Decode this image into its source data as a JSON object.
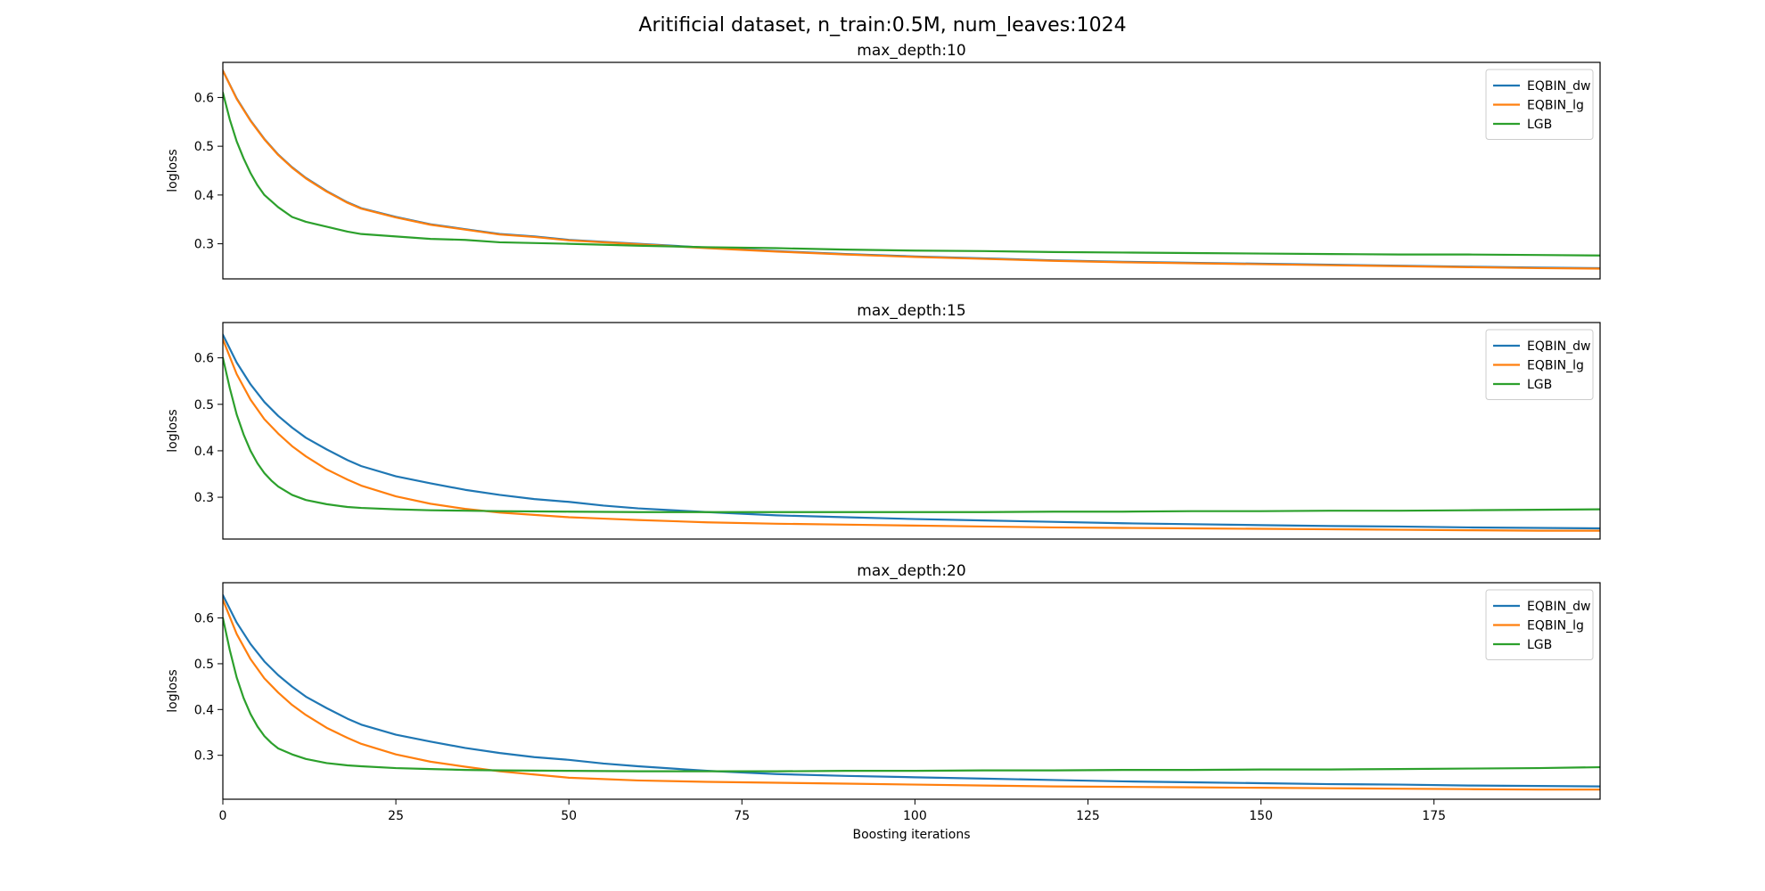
{
  "figure": {
    "title": "Aritificial dataset, n_train:0.5M, num_leaves:1024"
  },
  "chart_data": [
    {
      "type": "line",
      "title": "max_depth:10",
      "xlabel": "",
      "ylabel": "logloss",
      "xlim": [
        0,
        199
      ],
      "ylim": [
        0.228,
        0.672
      ],
      "yticks": [
        0.3,
        0.4,
        0.5,
        0.6
      ],
      "xticks": [],
      "legend_position": "top-right",
      "grid": false,
      "series": [
        {
          "name": "EQBIN_dw",
          "color": "#1f77b4",
          "x": [
            0,
            2,
            4,
            6,
            8,
            10,
            12,
            15,
            18,
            20,
            25,
            30,
            35,
            40,
            45,
            50,
            60,
            70,
            80,
            90,
            100,
            110,
            120,
            130,
            140,
            150,
            160,
            170,
            180,
            190,
            199
          ],
          "y": [
            0.655,
            0.598,
            0.553,
            0.515,
            0.483,
            0.457,
            0.435,
            0.408,
            0.385,
            0.373,
            0.355,
            0.34,
            0.33,
            0.32,
            0.315,
            0.308,
            0.3,
            0.292,
            0.285,
            0.279,
            0.274,
            0.27,
            0.266,
            0.263,
            0.261,
            0.259,
            0.257,
            0.255,
            0.253,
            0.251,
            0.25
          ]
        },
        {
          "name": "EQBIN_lg",
          "color": "#ff7f0e",
          "x": [
            0,
            2,
            4,
            6,
            8,
            10,
            12,
            15,
            18,
            20,
            25,
            30,
            35,
            40,
            45,
            50,
            60,
            70,
            80,
            90,
            100,
            110,
            120,
            130,
            140,
            150,
            160,
            170,
            180,
            190,
            199
          ],
          "y": [
            0.655,
            0.597,
            0.552,
            0.514,
            0.482,
            0.456,
            0.434,
            0.407,
            0.384,
            0.372,
            0.354,
            0.339,
            0.329,
            0.319,
            0.314,
            0.307,
            0.299,
            0.291,
            0.284,
            0.278,
            0.273,
            0.269,
            0.265,
            0.262,
            0.26,
            0.258,
            0.256,
            0.254,
            0.252,
            0.25,
            0.249
          ]
        },
        {
          "name": "LGB",
          "color": "#2ca02c",
          "x": [
            0,
            1,
            2,
            3,
            4,
            5,
            6,
            8,
            10,
            12,
            15,
            18,
            20,
            25,
            30,
            35,
            40,
            50,
            60,
            70,
            80,
            90,
            100,
            110,
            120,
            130,
            140,
            150,
            160,
            170,
            180,
            190,
            199
          ],
          "y": [
            0.61,
            0.555,
            0.51,
            0.475,
            0.445,
            0.42,
            0.4,
            0.375,
            0.355,
            0.345,
            0.335,
            0.325,
            0.32,
            0.315,
            0.31,
            0.308,
            0.303,
            0.3,
            0.296,
            0.293,
            0.291,
            0.288,
            0.286,
            0.285,
            0.283,
            0.282,
            0.281,
            0.28,
            0.279,
            0.278,
            0.278,
            0.277,
            0.276
          ]
        }
      ]
    },
    {
      "type": "line",
      "title": "max_depth:15",
      "xlabel": "",
      "ylabel": "logloss",
      "xlim": [
        0,
        199
      ],
      "ylim": [
        0.21,
        0.676
      ],
      "yticks": [
        0.3,
        0.4,
        0.5,
        0.6
      ],
      "xticks": [],
      "legend_position": "top-right",
      "grid": false,
      "series": [
        {
          "name": "EQBIN_dw",
          "color": "#1f77b4",
          "x": [
            0,
            2,
            4,
            6,
            8,
            10,
            12,
            15,
            18,
            20,
            25,
            30,
            35,
            40,
            45,
            50,
            55,
            60,
            70,
            80,
            90,
            100,
            110,
            120,
            130,
            140,
            150,
            160,
            170,
            180,
            190,
            199
          ],
          "y": [
            0.65,
            0.59,
            0.543,
            0.505,
            0.475,
            0.45,
            0.428,
            0.403,
            0.38,
            0.367,
            0.345,
            0.33,
            0.316,
            0.305,
            0.296,
            0.29,
            0.282,
            0.276,
            0.268,
            0.261,
            0.257,
            0.253,
            0.25,
            0.247,
            0.244,
            0.242,
            0.24,
            0.238,
            0.237,
            0.235,
            0.234,
            0.233
          ]
        },
        {
          "name": "EQBIN_lg",
          "color": "#ff7f0e",
          "x": [
            0,
            2,
            4,
            6,
            8,
            10,
            12,
            15,
            18,
            20,
            25,
            30,
            35,
            40,
            45,
            50,
            55,
            60,
            70,
            80,
            90,
            100,
            110,
            120,
            130,
            140,
            150,
            160,
            170,
            180,
            190,
            199
          ],
          "y": [
            0.64,
            0.565,
            0.51,
            0.468,
            0.437,
            0.41,
            0.388,
            0.36,
            0.338,
            0.325,
            0.302,
            0.286,
            0.275,
            0.267,
            0.262,
            0.257,
            0.254,
            0.251,
            0.246,
            0.243,
            0.241,
            0.239,
            0.237,
            0.235,
            0.234,
            0.233,
            0.232,
            0.231,
            0.23,
            0.229,
            0.228,
            0.228
          ]
        },
        {
          "name": "LGB",
          "color": "#2ca02c",
          "x": [
            0,
            1,
            2,
            3,
            4,
            5,
            6,
            7,
            8,
            10,
            12,
            15,
            18,
            20,
            25,
            30,
            35,
            40,
            50,
            60,
            70,
            80,
            90,
            100,
            110,
            120,
            130,
            140,
            150,
            160,
            170,
            180,
            190,
            199
          ],
          "y": [
            0.6,
            0.535,
            0.478,
            0.435,
            0.4,
            0.373,
            0.352,
            0.336,
            0.323,
            0.305,
            0.294,
            0.285,
            0.279,
            0.277,
            0.274,
            0.272,
            0.271,
            0.27,
            0.269,
            0.268,
            0.268,
            0.268,
            0.268,
            0.268,
            0.268,
            0.269,
            0.269,
            0.27,
            0.27,
            0.271,
            0.271,
            0.272,
            0.273,
            0.274
          ]
        }
      ]
    },
    {
      "type": "line",
      "title": "max_depth:20",
      "xlabel": "Boosting iterations",
      "ylabel": "logloss",
      "xlim": [
        0,
        199
      ],
      "ylim": [
        0.204,
        0.677
      ],
      "yticks": [
        0.3,
        0.4,
        0.5,
        0.6
      ],
      "xticks": [
        0,
        25,
        50,
        75,
        100,
        125,
        150,
        175
      ],
      "legend_position": "top-right",
      "grid": false,
      "series": [
        {
          "name": "EQBIN_dw",
          "color": "#1f77b4",
          "x": [
            0,
            2,
            4,
            6,
            8,
            10,
            12,
            15,
            18,
            20,
            25,
            30,
            35,
            40,
            45,
            50,
            55,
            60,
            70,
            80,
            90,
            100,
            110,
            120,
            130,
            140,
            150,
            160,
            170,
            180,
            190,
            199
          ],
          "y": [
            0.65,
            0.59,
            0.543,
            0.505,
            0.475,
            0.45,
            0.428,
            0.403,
            0.38,
            0.367,
            0.345,
            0.33,
            0.316,
            0.305,
            0.296,
            0.29,
            0.282,
            0.276,
            0.266,
            0.259,
            0.255,
            0.252,
            0.249,
            0.246,
            0.243,
            0.241,
            0.239,
            0.237,
            0.236,
            0.234,
            0.233,
            0.232
          ]
        },
        {
          "name": "EQBIN_lg",
          "color": "#ff7f0e",
          "x": [
            0,
            2,
            4,
            6,
            8,
            10,
            12,
            15,
            18,
            20,
            25,
            30,
            35,
            40,
            45,
            50,
            55,
            60,
            70,
            80,
            90,
            100,
            110,
            120,
            130,
            140,
            150,
            160,
            170,
            180,
            190,
            199
          ],
          "y": [
            0.64,
            0.565,
            0.51,
            0.468,
            0.437,
            0.41,
            0.388,
            0.36,
            0.338,
            0.325,
            0.302,
            0.286,
            0.275,
            0.265,
            0.258,
            0.251,
            0.248,
            0.245,
            0.242,
            0.24,
            0.238,
            0.236,
            0.234,
            0.232,
            0.231,
            0.23,
            0.229,
            0.228,
            0.227,
            0.226,
            0.225,
            0.225
          ]
        },
        {
          "name": "LGB",
          "color": "#2ca02c",
          "x": [
            0,
            1,
            2,
            3,
            4,
            5,
            6,
            7,
            8,
            10,
            12,
            15,
            18,
            20,
            25,
            30,
            35,
            40,
            50,
            60,
            70,
            80,
            90,
            100,
            110,
            120,
            130,
            140,
            150,
            160,
            170,
            180,
            190,
            199
          ],
          "y": [
            0.6,
            0.53,
            0.47,
            0.425,
            0.39,
            0.363,
            0.342,
            0.327,
            0.315,
            0.302,
            0.292,
            0.283,
            0.278,
            0.276,
            0.272,
            0.27,
            0.268,
            0.267,
            0.266,
            0.265,
            0.265,
            0.265,
            0.266,
            0.266,
            0.267,
            0.267,
            0.268,
            0.268,
            0.269,
            0.269,
            0.27,
            0.271,
            0.272,
            0.274
          ]
        }
      ]
    }
  ]
}
